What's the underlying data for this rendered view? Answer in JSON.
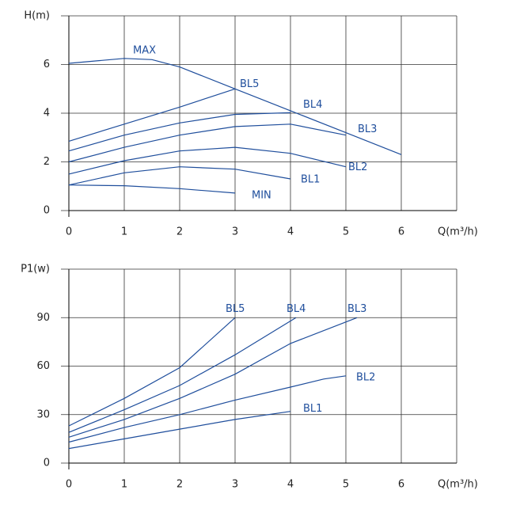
{
  "chart_data": [
    {
      "type": "line",
      "y_label": "H(m)",
      "x_label": "Q(m³/h)",
      "xlim": [
        0,
        7
      ],
      "xticks": [
        0,
        1,
        2,
        3,
        4,
        5,
        6
      ],
      "ylim": [
        0,
        8
      ],
      "yticks": [
        0,
        2,
        4,
        6
      ],
      "grid": true,
      "series": [
        {
          "name": "MAX",
          "color": "#1f4e9c",
          "x": [
            0,
            0.5,
            1,
            1.5,
            2,
            3,
            4,
            5,
            6
          ],
          "values": [
            6.05,
            6.15,
            6.25,
            6.2,
            5.9,
            5.0,
            4.1,
            3.2,
            2.3
          ]
        },
        {
          "name": "BL5",
          "color": "#1f4e9c",
          "x": [
            0,
            1,
            2,
            3
          ],
          "values": [
            2.85,
            3.55,
            4.25,
            5.0
          ]
        },
        {
          "name": "BL4",
          "color": "#1f4e9c",
          "x": [
            0,
            1,
            2,
            3,
            4
          ],
          "values": [
            2.45,
            3.1,
            3.6,
            3.95,
            4.02
          ]
        },
        {
          "name": "BL3",
          "color": "#1f4e9c",
          "x": [
            0,
            1,
            2,
            3,
            4,
            5
          ],
          "values": [
            2.0,
            2.6,
            3.1,
            3.45,
            3.55,
            3.1
          ]
        },
        {
          "name": "BL2",
          "color": "#1f4e9c",
          "x": [
            0,
            1,
            2,
            3,
            4,
            5
          ],
          "values": [
            1.5,
            2.05,
            2.45,
            2.6,
            2.35,
            1.8
          ]
        },
        {
          "name": "BL1",
          "color": "#1f4e9c",
          "x": [
            0,
            1,
            2,
            3,
            4
          ],
          "values": [
            1.05,
            1.55,
            1.8,
            1.7,
            1.3
          ]
        },
        {
          "name": "MIN",
          "color": "#1f4e9c",
          "x": [
            0,
            1,
            2,
            3
          ],
          "values": [
            1.05,
            1.02,
            0.9,
            0.72
          ]
        }
      ]
    },
    {
      "type": "line",
      "y_label": "P1(w)",
      "x_label": "Q(m³/h)",
      "xlim": [
        0,
        7
      ],
      "xticks": [
        0,
        1,
        2,
        3,
        4,
        5,
        6
      ],
      "ylim": [
        0,
        120
      ],
      "yticks": [
        0,
        30,
        60,
        90
      ],
      "grid": true,
      "series": [
        {
          "name": "BL5",
          "color": "#1f4e9c",
          "x": [
            0,
            1,
            2,
            3
          ],
          "values": [
            23,
            40,
            59,
            90
          ]
        },
        {
          "name": "BL4",
          "color": "#1f4e9c",
          "x": [
            0,
            1,
            2,
            3,
            4.1
          ],
          "values": [
            19,
            33,
            48,
            67,
            90
          ]
        },
        {
          "name": "BL3",
          "color": "#1f4e9c",
          "x": [
            0,
            1,
            2,
            3,
            4,
            5.2
          ],
          "values": [
            16,
            27,
            40,
            55,
            74,
            90
          ]
        },
        {
          "name": "BL2",
          "color": "#1f4e9c",
          "x": [
            0,
            1,
            2,
            3,
            4,
            4.6,
            5
          ],
          "values": [
            13,
            22,
            30,
            39,
            47,
            52,
            54
          ]
        },
        {
          "name": "BL1",
          "color": "#1f4e9c",
          "x": [
            0,
            1,
            2,
            3,
            4
          ],
          "values": [
            9,
            15,
            21,
            27,
            32
          ]
        }
      ]
    }
  ]
}
